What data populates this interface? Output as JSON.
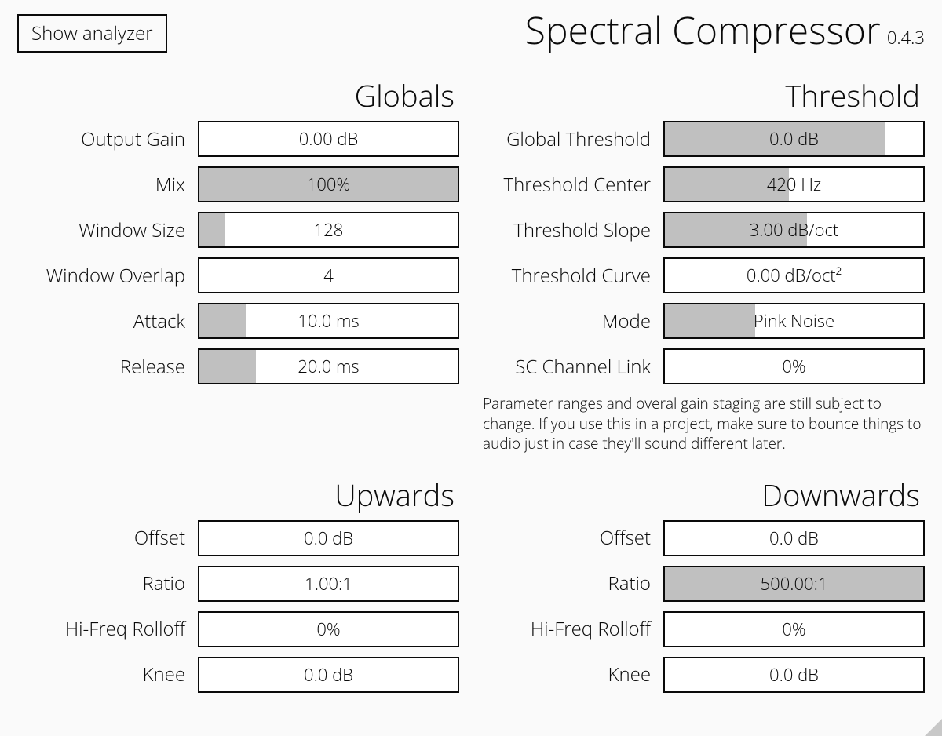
{
  "header": {
    "show_analyzer": "Show analyzer",
    "title": "Spectral Compressor",
    "version": "0.4.3"
  },
  "colors": {
    "background": "#fafafa",
    "text": "#0a0a0a",
    "box_border": "#0a0a0a",
    "box_bg": "#ffffff",
    "fill": "#c0c0c0",
    "resize_grip": "#c8c8c8"
  },
  "sections": {
    "globals": {
      "title": "Globals",
      "params": [
        {
          "key": "output-gain",
          "label": "Output Gain",
          "value": "0.00 dB",
          "fill_pct": 0
        },
        {
          "key": "mix",
          "label": "Mix",
          "value": "100%",
          "fill_pct": 100
        },
        {
          "key": "window-size",
          "label": "Window Size",
          "value": "128",
          "fill_pct": 10
        },
        {
          "key": "window-overlap",
          "label": "Window Overlap",
          "value": "4",
          "fill_pct": 0
        },
        {
          "key": "attack",
          "label": "Attack",
          "value": "10.0 ms",
          "fill_pct": 18
        },
        {
          "key": "release",
          "label": "Release",
          "value": "20.0 ms",
          "fill_pct": 22
        }
      ]
    },
    "threshold": {
      "title": "Threshold",
      "params": [
        {
          "key": "global-threshold",
          "label": "Global Threshold",
          "value": "0.0 dB",
          "fill_pct": 85
        },
        {
          "key": "threshold-center",
          "label": "Threshold Center",
          "value": "420 Hz",
          "fill_pct": 48
        },
        {
          "key": "threshold-slope",
          "label": "Threshold Slope",
          "value": "3.00 dB/oct",
          "fill_pct": 55
        },
        {
          "key": "threshold-curve",
          "label": "Threshold Curve",
          "value": "0.00 dB/oct²",
          "fill_pct": 0
        },
        {
          "key": "mode",
          "label": "Mode",
          "value": "Pink Noise",
          "fill_pct": 35
        },
        {
          "key": "sc-channel-link",
          "label": "SC Channel Link",
          "value": "0%",
          "fill_pct": 0
        }
      ],
      "note": "Parameter ranges and overal gain staging are still subject to change. If you use this in a project, make sure to bounce things to audio just in case they'll sound different later."
    },
    "upwards": {
      "title": "Upwards",
      "params": [
        {
          "key": "up-offset",
          "label": "Offset",
          "value": "0.0 dB",
          "fill_pct": 0
        },
        {
          "key": "up-ratio",
          "label": "Ratio",
          "value": "1.00:1",
          "fill_pct": 0
        },
        {
          "key": "up-rolloff",
          "label": "Hi-Freq Rolloff",
          "value": "0%",
          "fill_pct": 0
        },
        {
          "key": "up-knee",
          "label": "Knee",
          "value": "0.0 dB",
          "fill_pct": 0
        }
      ]
    },
    "downwards": {
      "title": "Downwards",
      "params": [
        {
          "key": "dn-offset",
          "label": "Offset",
          "value": "0.0 dB",
          "fill_pct": 0
        },
        {
          "key": "dn-ratio",
          "label": "Ratio",
          "value": "500.00:1",
          "fill_pct": 100
        },
        {
          "key": "dn-rolloff",
          "label": "Hi-Freq Rolloff",
          "value": "0%",
          "fill_pct": 0
        },
        {
          "key": "dn-knee",
          "label": "Knee",
          "value": "0.0 dB",
          "fill_pct": 0
        }
      ]
    }
  }
}
